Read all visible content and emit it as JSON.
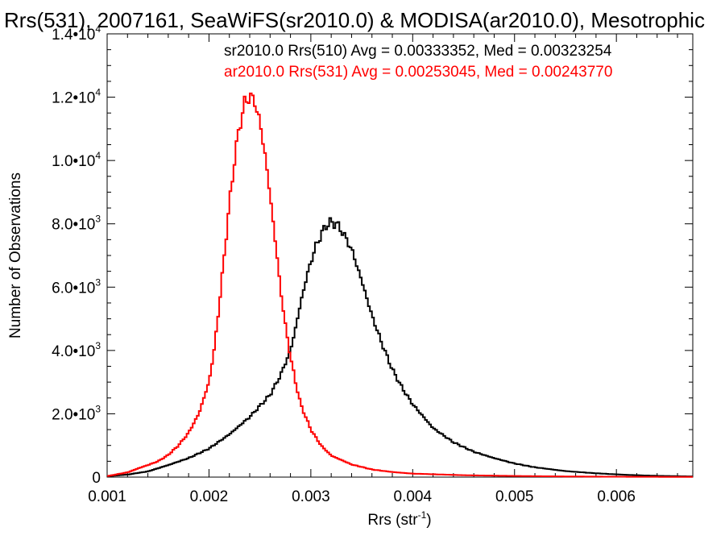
{
  "chart_data": {
    "type": "line",
    "title": "Rrs(531), 2007161, SeaWiFS(sr2010.0) & MODISA(ar2010.0), Mesotrophic",
    "xlabel": "Rrs (str",
    "xlabel_sup": "-1",
    "xlabel_end": ")",
    "ylabel": "Number of Observations",
    "xlim": [
      0.001,
      0.00675
    ],
    "ylim": [
      0,
      14000
    ],
    "grid": false,
    "x_ticks": [
      {
        "value": 0.001,
        "label": "0.001"
      },
      {
        "value": 0.002,
        "label": "0.002"
      },
      {
        "value": 0.003,
        "label": "0.003"
      },
      {
        "value": 0.004,
        "label": "0.004"
      },
      {
        "value": 0.005,
        "label": "0.005"
      },
      {
        "value": 0.006,
        "label": "0.006"
      }
    ],
    "y_ticks": [
      {
        "value": 0,
        "label": "0",
        "sup": ""
      },
      {
        "value": 2000,
        "label": "2.0•10",
        "sup": "3"
      },
      {
        "value": 4000,
        "label": "4.0•10",
        "sup": "3"
      },
      {
        "value": 6000,
        "label": "6.0•10",
        "sup": "3"
      },
      {
        "value": 8000,
        "label": "8.0•10",
        "sup": "3"
      },
      {
        "value": 10000,
        "label": "1.0•10",
        "sup": "4"
      },
      {
        "value": 12000,
        "label": "1.2•10",
        "sup": "4"
      },
      {
        "value": 14000,
        "label": "1.4•10",
        "sup": "4"
      }
    ],
    "annotations": [
      {
        "text": "sr2010.0 Rrs(510) Avg = 0.00333352, Med = 0.00323254",
        "color": "#000000"
      },
      {
        "text": "ar2010.0 Rrs(531) Avg = 0.00253045, Med = 0.00243770",
        "color": "#ff0000"
      }
    ],
    "series": [
      {
        "color": "#000000",
        "x": [
          0.001,
          0.0012,
          0.0014,
          0.0016,
          0.0018,
          0.002,
          0.0022,
          0.0024,
          0.0026,
          0.0027,
          0.0028,
          0.00285,
          0.0029,
          0.00295,
          0.003,
          0.00305,
          0.0031,
          0.00315,
          0.0032,
          0.00325,
          0.0033,
          0.0034,
          0.0035,
          0.0036,
          0.0037,
          0.0038,
          0.0039,
          0.004,
          0.0042,
          0.0044,
          0.0046,
          0.0048,
          0.005,
          0.0052,
          0.0055,
          0.0058,
          0.0061,
          0.0064,
          0.00675
        ],
        "y": [
          30,
          80,
          180,
          380,
          600,
          900,
          1350,
          1900,
          2600,
          3200,
          4000,
          4700,
          5500,
          6200,
          6800,
          7300,
          7650,
          7950,
          8050,
          8000,
          7800,
          7200,
          6200,
          5100,
          4200,
          3400,
          2800,
          2300,
          1550,
          1100,
          800,
          600,
          430,
          310,
          190,
          120,
          70,
          40,
          20
        ]
      },
      {
        "color": "#ff0000",
        "x": [
          0.001,
          0.0012,
          0.0013,
          0.0014,
          0.0015,
          0.0016,
          0.0017,
          0.0018,
          0.0019,
          0.002,
          0.00205,
          0.0021,
          0.00215,
          0.0022,
          0.00225,
          0.0023,
          0.00235,
          0.0024,
          0.00245,
          0.0025,
          0.00255,
          0.0026,
          0.00265,
          0.0027,
          0.00275,
          0.0028,
          0.00285,
          0.0029,
          0.003,
          0.0031,
          0.0032,
          0.0034,
          0.0036,
          0.0038,
          0.004,
          0.0045,
          0.005,
          0.0055,
          0.006,
          0.00675
        ],
        "y": [
          30,
          150,
          270,
          380,
          500,
          700,
          1000,
          1400,
          2000,
          3000,
          4000,
          5400,
          7000,
          8600,
          10000,
          11100,
          11800,
          12050,
          11850,
          11200,
          10200,
          8900,
          7500,
          6000,
          4800,
          3800,
          3000,
          2300,
          1500,
          1000,
          680,
          400,
          240,
          160,
          110,
          60,
          35,
          20,
          12,
          5
        ]
      }
    ]
  }
}
